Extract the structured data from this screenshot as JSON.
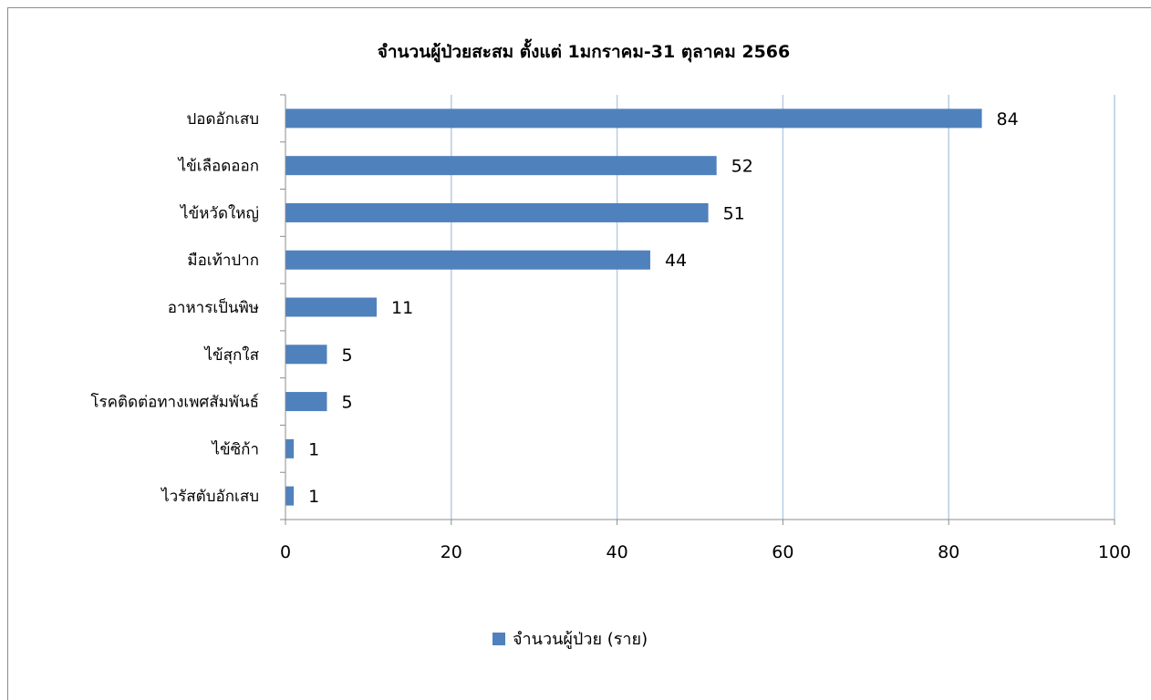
{
  "chart_data": {
    "type": "bar",
    "orientation": "horizontal",
    "title": "จำนวนผู้ป่วยสะสม ตั้งแต่ 1มกราคม-31 ตุลาคม 2566",
    "categories": [
      "ปอดอักเสบ",
      "ไข้เลือดออก",
      "ไข้หวัดใหญ่",
      "มือเท้าปาก",
      "อาหารเป็นพิษ",
      "ไข้สุกใส",
      "โรคติดต่อทางเพศสัมพันธ์",
      "ไข้ซิก้า",
      "ไวรัสตับอักเสบ"
    ],
    "series": [
      {
        "name": "จำนวนผู้ป่วย (ราย)",
        "values": [
          84,
          52,
          51,
          44,
          11,
          5,
          5,
          1,
          1
        ]
      }
    ],
    "xlim": [
      0,
      100
    ],
    "xticks": [
      0,
      20,
      40,
      60,
      80,
      100
    ],
    "grid": "vertical-major",
    "legend_position": "bottom",
    "bar_color": "#4f81bd",
    "grid_color": "#b8cce4"
  }
}
